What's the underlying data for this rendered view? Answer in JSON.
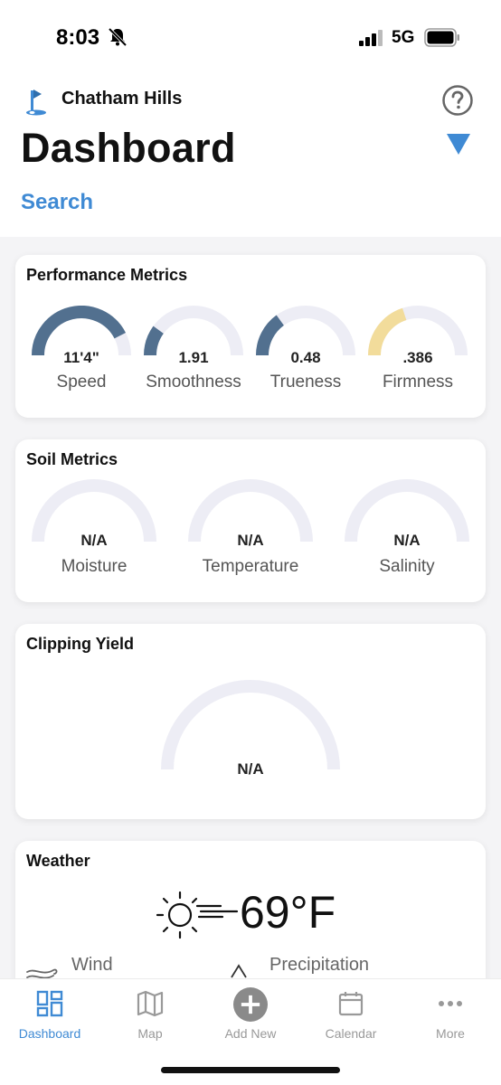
{
  "status_bar": {
    "time": "8:03",
    "network": "5G"
  },
  "header": {
    "course_name": "Chatham Hills",
    "title": "Dashboard",
    "search_label": "Search"
  },
  "performance": {
    "title": "Performance Metrics",
    "gauges": [
      {
        "value": "11'4\"",
        "label": "Speed",
        "fill_fraction": 0.85,
        "color": "#52708f"
      },
      {
        "value": "1.91",
        "label": "Smoothness",
        "fill_fraction": 0.2,
        "color": "#52708f"
      },
      {
        "value": "0.48",
        "label": "Trueness",
        "fill_fraction": 0.3,
        "color": "#52708f"
      },
      {
        "value": ".386",
        "label": "Firmness",
        "fill_fraction": 0.4,
        "color": "#f2dc9b"
      }
    ]
  },
  "soil": {
    "title": "Soil Metrics",
    "gauges": [
      {
        "value": "N/A",
        "label": "Moisture"
      },
      {
        "value": "N/A",
        "label": "Temperature"
      },
      {
        "value": "N/A",
        "label": "Salinity"
      }
    ]
  },
  "clipping": {
    "title": "Clipping Yield",
    "value": "N/A"
  },
  "weather": {
    "title": "Weather",
    "temperature": "69°F",
    "wind_label": "Wind",
    "precip_label": "Precipitation"
  },
  "tabs": [
    {
      "label": "Dashboard",
      "icon": "dashboard-icon",
      "active": true
    },
    {
      "label": "Map",
      "icon": "map-icon",
      "active": false
    },
    {
      "label": "Add New",
      "icon": "add-new-icon",
      "active": false
    },
    {
      "label": "Calendar",
      "icon": "calendar-icon",
      "active": false
    },
    {
      "label": "More",
      "icon": "more-icon",
      "active": false
    }
  ],
  "colors": {
    "accent": "#3f8ad4",
    "gauge_track": "#ededf5",
    "gauge_fill": "#52708f",
    "firmness_fill": "#f2dc9b"
  }
}
